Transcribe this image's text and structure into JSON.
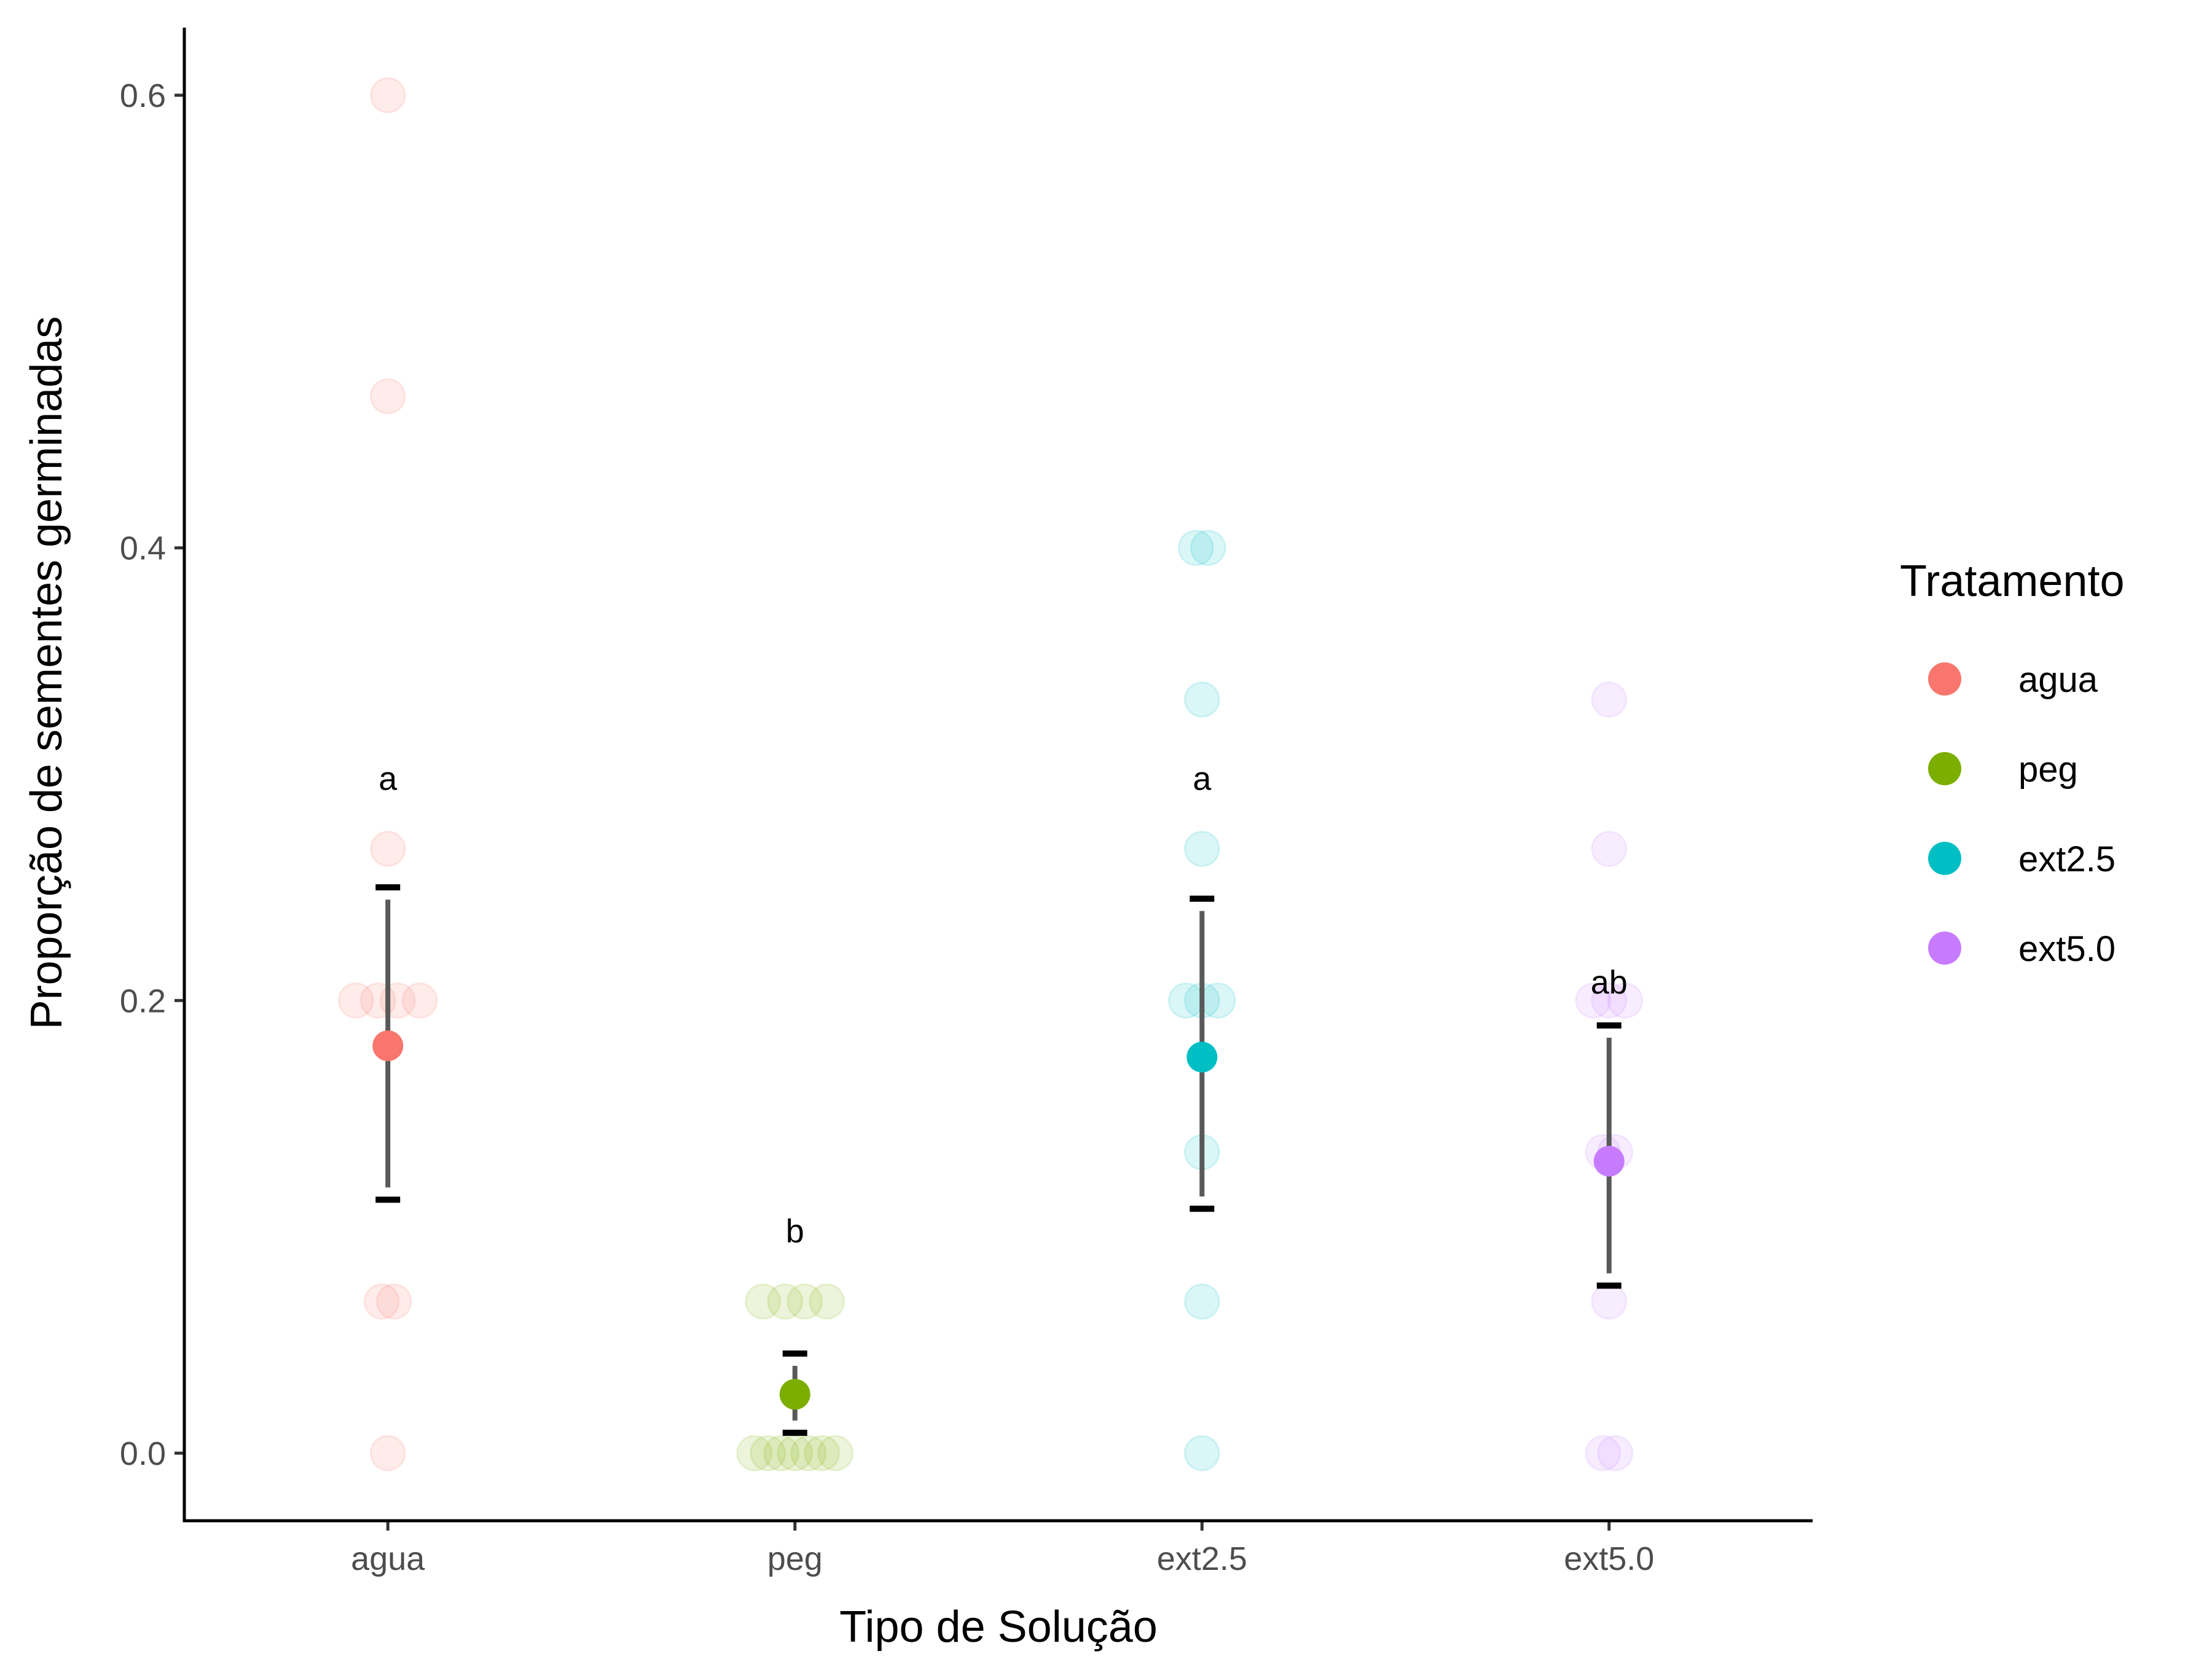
{
  "chart_data": {
    "type": "scatter",
    "title": "",
    "xlabel": "Tipo de Solução",
    "ylabel": "Proporção de sementes germinadas",
    "categories": [
      "agua",
      "peg",
      "ext2.5",
      "ext5.0"
    ],
    "ylim": [
      -0.03,
      0.63
    ],
    "yticks": [
      0.0,
      0.2,
      0.4,
      0.6
    ],
    "ytick_labels": [
      "0.0",
      "0.2",
      "0.4",
      "0.6"
    ],
    "grid": false,
    "legend": {
      "title": "Tratamento",
      "position": "right",
      "entries": [
        "agua",
        "peg",
        "ext2.5",
        "ext5.0"
      ]
    },
    "colors": {
      "agua": "#F8766D",
      "peg": "#7CAE00",
      "ext2.5": "#00BFC4",
      "ext5.0": "#C77CFF"
    },
    "series": [
      {
        "name": "agua",
        "raw_points": [
          0.6,
          0.467,
          0.267,
          0.2,
          0.2,
          0.2,
          0.2,
          0.067,
          0.067,
          0.0
        ],
        "mean": 0.18,
        "ci": [
          0.112,
          0.25
        ],
        "letter": "a",
        "letter_y": 0.298
      },
      {
        "name": "peg",
        "raw_points": [
          0.067,
          0.067,
          0.067,
          0.067,
          0.0,
          0.0,
          0.0,
          0.0,
          0.0,
          0.0,
          0.0
        ],
        "mean": 0.026,
        "ci": [
          0.009,
          0.044
        ],
        "letter": "b",
        "letter_y": 0.098
      },
      {
        "name": "ext2.5",
        "raw_points": [
          0.4,
          0.4,
          0.333,
          0.267,
          0.2,
          0.2,
          0.2,
          0.133,
          0.067,
          0.0
        ],
        "mean": 0.175,
        "ci": [
          0.108,
          0.245
        ],
        "letter": "a",
        "letter_y": 0.298
      },
      {
        "name": "ext5.0",
        "raw_points": [
          0.333,
          0.267,
          0.2,
          0.2,
          0.2,
          0.133,
          0.133,
          0.067,
          0.0,
          0.0
        ],
        "mean": 0.129,
        "ci": [
          0.074,
          0.189
        ],
        "letter": "ab",
        "letter_y": 0.208
      }
    ]
  }
}
